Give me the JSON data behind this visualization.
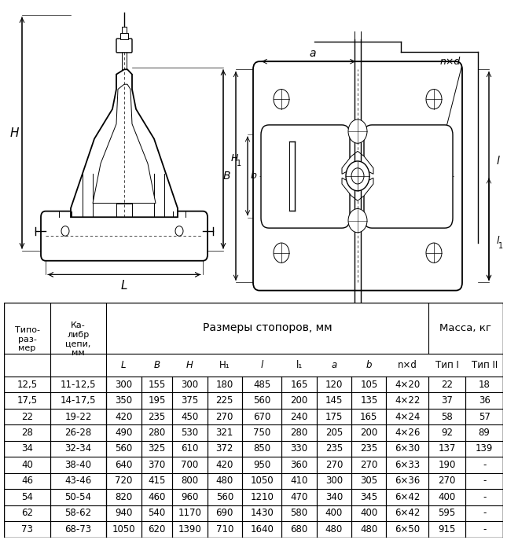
{
  "table_data": [
    [
      "12,5",
      "11-12,5",
      "300",
      "155",
      "300",
      "180",
      "485",
      "165",
      "120",
      "105",
      "4×20",
      "22",
      "18"
    ],
    [
      "17,5",
      "14-17,5",
      "350",
      "195",
      "375",
      "225",
      "560",
      "200",
      "145",
      "135",
      "4×22",
      "37",
      "36"
    ],
    [
      "22",
      "19-22",
      "420",
      "235",
      "450",
      "270",
      "670",
      "240",
      "175",
      "165",
      "4×24",
      "58",
      "57"
    ],
    [
      "28",
      "26-28",
      "490",
      "280",
      "530",
      "321",
      "750",
      "280",
      "205",
      "200",
      "4×26",
      "92",
      "89"
    ],
    [
      "34",
      "32-34",
      "560",
      "325",
      "610",
      "372",
      "850",
      "330",
      "235",
      "235",
      "6×30",
      "137",
      "139"
    ],
    [
      "40",
      "38-40",
      "640",
      "370",
      "700",
      "420",
      "950",
      "360",
      "270",
      "270",
      "6×33",
      "190",
      "-"
    ],
    [
      "46",
      "43-46",
      "720",
      "415",
      "800",
      "480",
      "1050",
      "410",
      "300",
      "305",
      "6×36",
      "270",
      "-"
    ],
    [
      "54",
      "50-54",
      "820",
      "460",
      "960",
      "560",
      "1210",
      "470",
      "340",
      "345",
      "6×42",
      "400",
      "-"
    ],
    [
      "62",
      "58-62",
      "940",
      "540",
      "1170",
      "690",
      "1430",
      "580",
      "400",
      "400",
      "6×42",
      "595",
      "-"
    ],
    [
      "73",
      "68-73",
      "1050",
      "620",
      "1390",
      "710",
      "1640",
      "680",
      "480",
      "480",
      "6×50",
      "915",
      "-"
    ]
  ],
  "bg_color": "#ffffff",
  "fig_width": 6.45,
  "fig_height": 6.87,
  "dpi": 100
}
